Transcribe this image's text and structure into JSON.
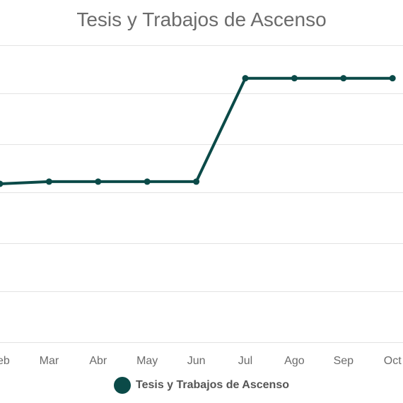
{
  "chart_data": {
    "type": "line",
    "title": "Tesis y Trabajos de Ascenso",
    "categories": [
      "Feb",
      "Mar",
      "Abr",
      "May",
      "Jun",
      "Jul",
      "Ago",
      "Sep",
      "Oct"
    ],
    "series": [
      {
        "name": "Tesis y Trabajos de Ascenso",
        "values": [
          0.57,
          0.58,
          0.58,
          0.58,
          0.58,
          1.05,
          1.05,
          1.05,
          1.05
        ]
      }
    ],
    "ylim": [
      -0.15,
      1.2
    ],
    "y_gridlines": [
      -0.15,
      0.08,
      0.3,
      0.53,
      0.75,
      0.98,
      1.2
    ],
    "grid": true,
    "legend": "bottom-center",
    "colors": {
      "series": "#0b4a48",
      "grid": "#e3e3e3",
      "text": "#6b6b6b"
    }
  }
}
